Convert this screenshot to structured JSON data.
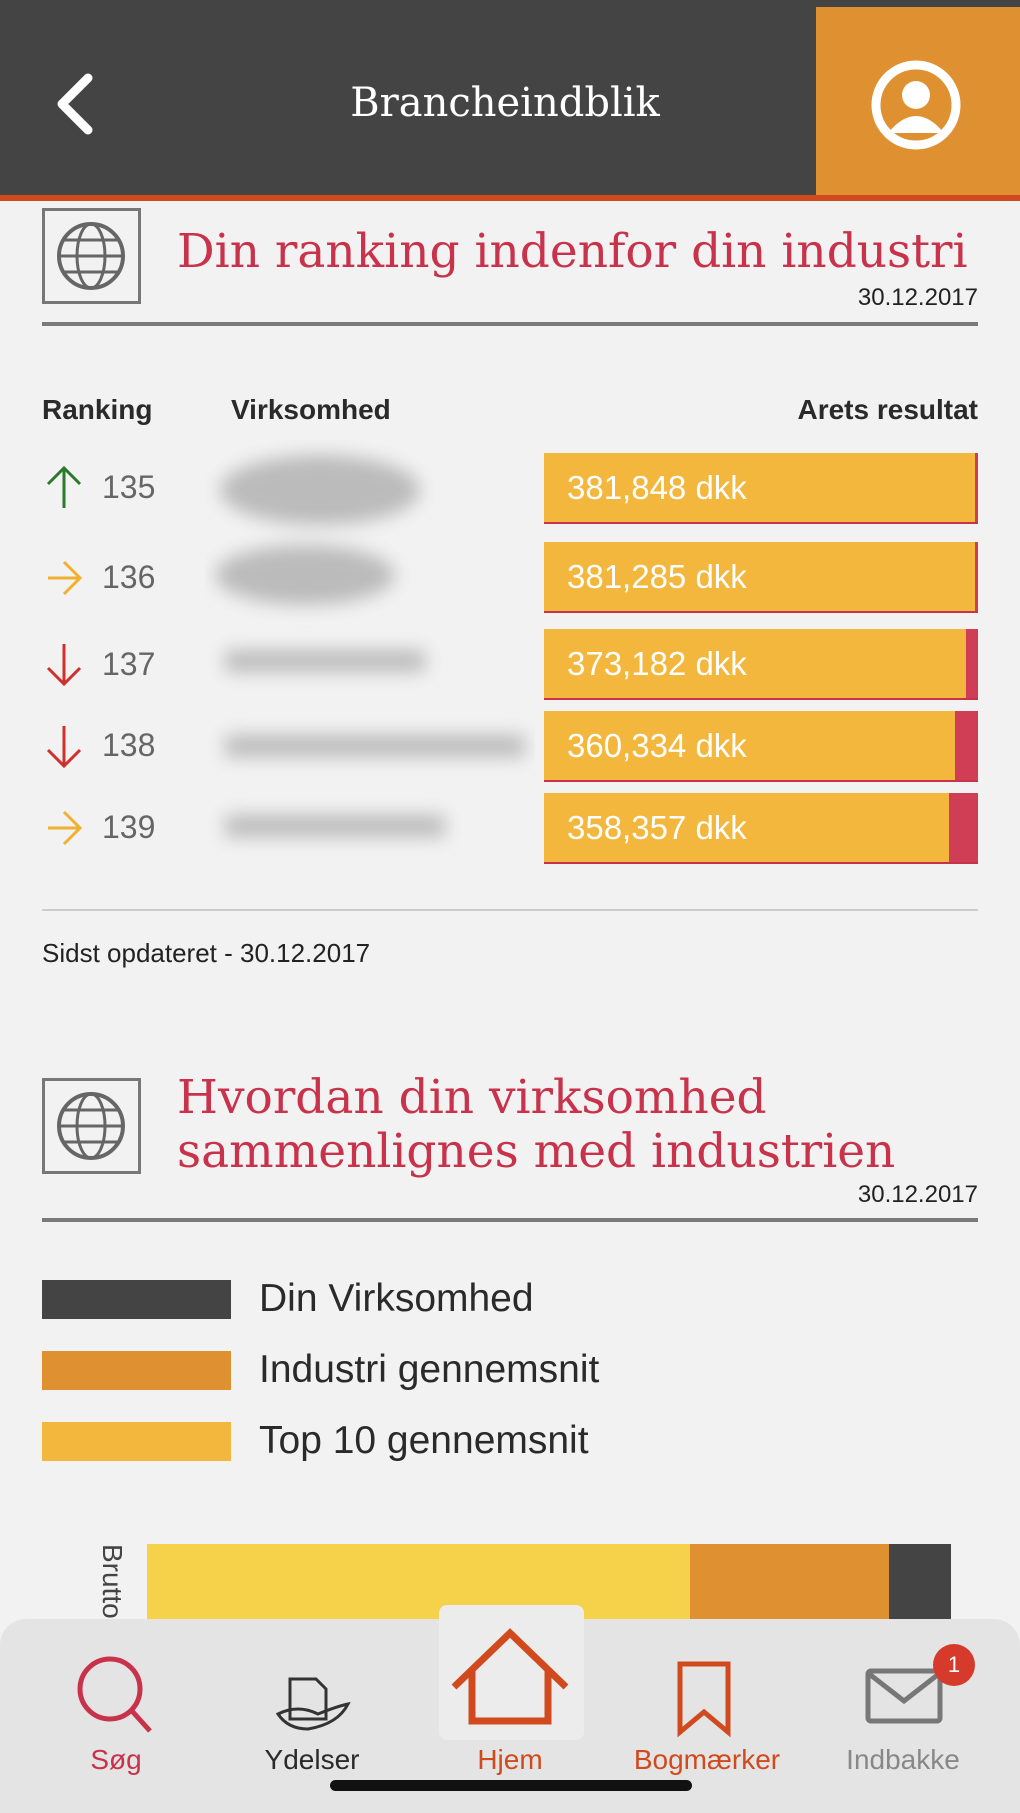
{
  "header": {
    "title": "Brancheindblik"
  },
  "ranking": {
    "title": "Din ranking indenfor din industri",
    "date": "30.12.2017",
    "columns": [
      "Ranking",
      "Virksomhed",
      "Arets resultat"
    ],
    "rows": [
      {
        "rank": "135",
        "result": "381,848 dkk"
      },
      {
        "rank": "136",
        "result": "381,285 dkk"
      },
      {
        "rank": "137",
        "result": "373,182 dkk"
      },
      {
        "rank": "138",
        "result": "360,334 dkk"
      },
      {
        "rank": "139",
        "result": "358,357 dkk"
      }
    ],
    "updated": "Sidst opdateret - 30.12.2017"
  },
  "comparison": {
    "title_lines": [
      "Hvordan din virksomhed",
      "sammenlignes med industrien"
    ],
    "date": "30.12.2017",
    "legend": [
      "Din Virksomhed",
      "Industri gennemsnit",
      "Top 10 gennemsnit"
    ],
    "chart_label": "Brutto"
  },
  "nav": {
    "items": [
      "Søg",
      "Ydelser",
      "Hjem",
      "Bogmærker",
      "Indbakke"
    ],
    "badge": "1"
  }
}
